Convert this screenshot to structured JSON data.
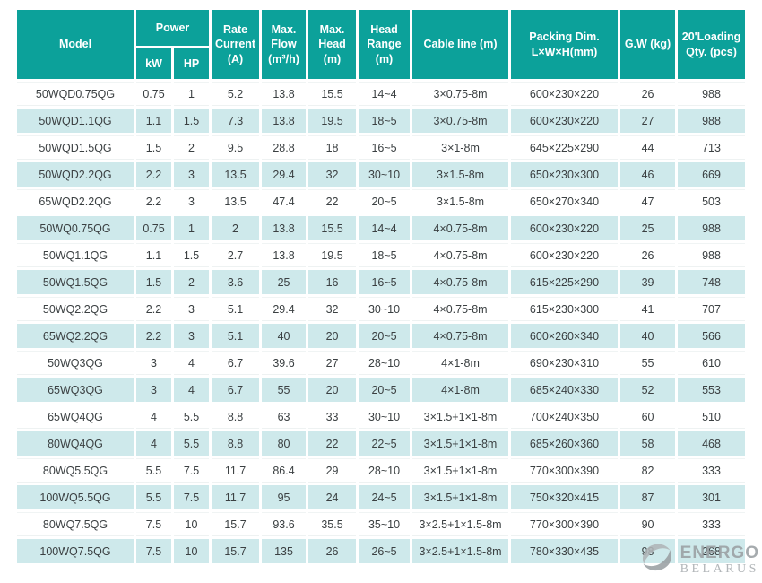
{
  "colors": {
    "header_bg": "#0CA19A",
    "row_alt_bg": "#CEE9EB",
    "row_bg": "#FFFFFF",
    "header_text": "#FFFFFF",
    "data_text": "#3B4042",
    "watermark_gray": "#9AA0A3"
  },
  "table": {
    "header": {
      "model": "Model",
      "power": "Power",
      "kw": "kW",
      "hp": "HP",
      "rate_current": "Rate Current (A)",
      "max_flow": "Max. Flow (m³/h)",
      "max_head": "Max. Head (m)",
      "head_range": "Head Range (m)",
      "cable_line": "Cable line (m)",
      "packing_dim": "Packing Dim. L×W×H(mm)",
      "gw": "G.W (kg)",
      "loading_qty": "20'Loading Qty. (pcs)"
    },
    "rows": [
      [
        "50WQD0.75QG",
        "0.75",
        "1",
        "5.2",
        "13.8",
        "15.5",
        "14~4",
        "3×0.75-8m",
        "600×230×220",
        "26",
        "988"
      ],
      [
        "50WQD1.1QG",
        "1.1",
        "1.5",
        "7.3",
        "13.8",
        "19.5",
        "18~5",
        "3×0.75-8m",
        "600×230×220",
        "27",
        "988"
      ],
      [
        "50WQD1.5QG",
        "1.5",
        "2",
        "9.5",
        "28.8",
        "18",
        "16~5",
        "3×1-8m",
        "645×225×290",
        "44",
        "713"
      ],
      [
        "50WQD2.2QG",
        "2.2",
        "3",
        "13.5",
        "29.4",
        "32",
        "30~10",
        "3×1.5-8m",
        "650×230×300",
        "46",
        "669"
      ],
      [
        "65WQD2.2QG",
        "2.2",
        "3",
        "13.5",
        "47.4",
        "22",
        "20~5",
        "3×1.5-8m",
        "650×270×340",
        "47",
        "503"
      ],
      [
        "50WQ0.75QG",
        "0.75",
        "1",
        "2",
        "13.8",
        "15.5",
        "14~4",
        "4×0.75-8m",
        "600×230×220",
        "25",
        "988"
      ],
      [
        "50WQ1.1QG",
        "1.1",
        "1.5",
        "2.7",
        "13.8",
        "19.5",
        "18~5",
        "4×0.75-8m",
        "600×230×220",
        "26",
        "988"
      ],
      [
        "50WQ1.5QG",
        "1.5",
        "2",
        "3.6",
        "25",
        "16",
        "16~5",
        "4×0.75-8m",
        "615×225×290",
        "39",
        "748"
      ],
      [
        "50WQ2.2QG",
        "2.2",
        "3",
        "5.1",
        "29.4",
        "32",
        "30~10",
        "4×0.75-8m",
        "615×230×300",
        "41",
        "707"
      ],
      [
        "65WQ2.2QG",
        "2.2",
        "3",
        "5.1",
        "40",
        "20",
        "20~5",
        "4×0.75-8m",
        "600×260×340",
        "40",
        "566"
      ],
      [
        "50WQ3QG",
        "3",
        "4",
        "6.7",
        "39.6",
        "27",
        "28~10",
        "4×1-8m",
        "690×230×310",
        "55",
        "610"
      ],
      [
        "65WQ3QG",
        "3",
        "4",
        "6.7",
        "55",
        "20",
        "20~5",
        "4×1-8m",
        "685×240×330",
        "52",
        "553"
      ],
      [
        "65WQ4QG",
        "4",
        "5.5",
        "8.8",
        "63",
        "33",
        "30~10",
        "3×1.5+1×1-8m",
        "700×240×350",
        "60",
        "510"
      ],
      [
        "80WQ4QG",
        "4",
        "5.5",
        "8.8",
        "80",
        "22",
        "22~5",
        "3×1.5+1×1-8m",
        "685×260×360",
        "58",
        "468"
      ],
      [
        "80WQ5.5QG",
        "5.5",
        "7.5",
        "11.7",
        "86.4",
        "29",
        "28~10",
        "3×1.5+1×1-8m",
        "770×300×390",
        "82",
        "333"
      ],
      [
        "100WQ5.5QG",
        "5.5",
        "7.5",
        "11.7",
        "95",
        "24",
        "24~5",
        "3×1.5+1×1-8m",
        "750×320×415",
        "87",
        "301"
      ],
      [
        "80WQ7.5QG",
        "7.5",
        "10",
        "15.7",
        "93.6",
        "35.5",
        "35~10",
        "3×2.5+1×1.5-8m",
        "770×300×390",
        "90",
        "333"
      ],
      [
        "100WQ7.5QG",
        "7.5",
        "10",
        "15.7",
        "135",
        "26",
        "26~5",
        "3×2.5+1×1.5-8m",
        "780×330×435",
        "98",
        "268"
      ]
    ]
  },
  "watermark": {
    "line1": "ENERGO",
    "line2": "BELARUS"
  }
}
